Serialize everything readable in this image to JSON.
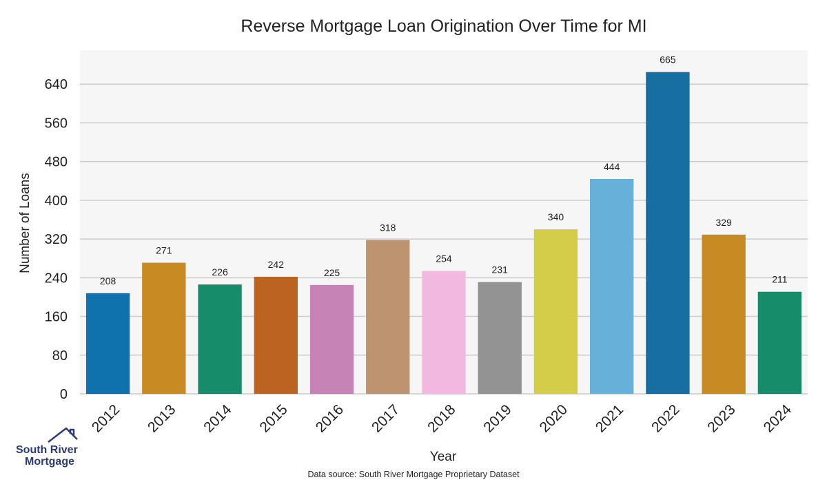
{
  "chart_data": {
    "type": "bar",
    "title": "Reverse Mortgage Loan Origination Over Time for MI",
    "xlabel": "Year",
    "ylabel": "Number of Loans",
    "categories": [
      "2012",
      "2013",
      "2014",
      "2015",
      "2016",
      "2017",
      "2018",
      "2019",
      "2020",
      "2021",
      "2022",
      "2023",
      "2024"
    ],
    "values": [
      208,
      271,
      226,
      242,
      225,
      318,
      254,
      231,
      340,
      444,
      665,
      329,
      211
    ],
    "colors": [
      "#0f72ad",
      "#c88a22",
      "#168c6a",
      "#bb6320",
      "#c583b6",
      "#bd9370",
      "#f2b8e0",
      "#939393",
      "#d4cd47",
      "#67b0d9",
      "#176ea0",
      "#c88a22",
      "#168c6a"
    ],
    "ylim": [
      0,
      710
    ],
    "yticks": [
      0,
      80,
      160,
      240,
      320,
      400,
      480,
      560,
      640
    ],
    "grid": true,
    "plot_background": "#f6f6f6",
    "grid_color": "#cccccc",
    "source_note": "Data source: South River Mortgage Proprietary Dataset"
  },
  "logo": {
    "line1": "South River",
    "line2": "Mortgage",
    "icon": "house-roof-icon",
    "color": "#2a3a7a"
  }
}
